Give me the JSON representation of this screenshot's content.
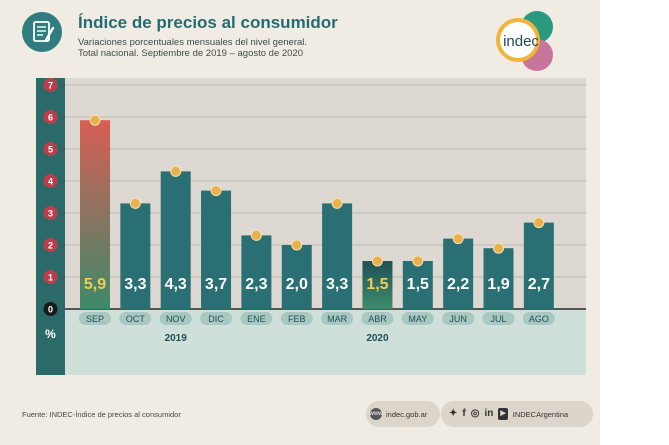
{
  "title": "Índice de precios al consumidor",
  "subtitle_lines": [
    "Variaciones porcentuales mensuales del nivel general.",
    "Total nacional. Septiembre de 2019 – agosto de 2020"
  ],
  "logo_text": "indec",
  "footer": {
    "source": "Fuente: INDEC-Índice de precios al consumidor",
    "website": "indec.gob.ar",
    "social_handle": "INDECArgentina"
  },
  "colors": {
    "bar": "#2a6f74",
    "bar_highlight_top": "#d95d54",
    "bar_highlight_bottom": "#3d8a6a",
    "bar_dark": "#1f5255",
    "marker": "#e8b04f",
    "accent_teal": "#2f7d7e",
    "plot_bg": "#ddd9d2",
    "axis_strip": "#2c6a6a",
    "label_highlight": "#f2cd54",
    "label_default": "#ffffff"
  },
  "chart_data": {
    "type": "bar",
    "categories": [
      "SEP",
      "OCT",
      "NOV",
      "DIC",
      "ENE",
      "FEB",
      "MAR",
      "ABR",
      "MAY",
      "JUN",
      "JUL",
      "AGO"
    ],
    "values": [
      5.9,
      3.3,
      4.3,
      3.7,
      2.3,
      2.0,
      3.3,
      1.5,
      1.5,
      2.2,
      1.9,
      2.7
    ],
    "value_labels": [
      "5,9",
      "3,3",
      "4,3",
      "3,7",
      "2,3",
      "2,0",
      "3,3",
      "1,5",
      "1,5",
      "2,2",
      "1,9",
      "2,7"
    ],
    "highlighted": [
      "SEP",
      "ABR"
    ],
    "year_labels": [
      {
        "text": "2019",
        "category": "NOV"
      },
      {
        "text": "2020",
        "category": "ABR"
      }
    ],
    "yticks": [
      0,
      1,
      2,
      3,
      4,
      5,
      6,
      7
    ],
    "ylim": [
      0,
      7
    ],
    "ylabel": "%",
    "grid": true
  }
}
